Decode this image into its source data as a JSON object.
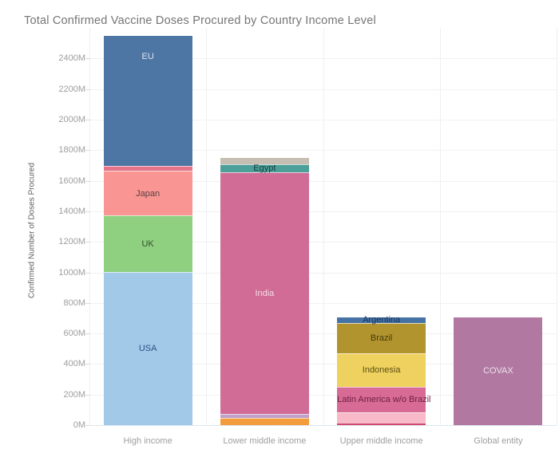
{
  "title": "Total Confirmed Vaccine Doses Procured by Country Income Level",
  "chart_data": {
    "type": "bar",
    "stacked": true,
    "title": "Total Confirmed Vaccine Doses Procured by Country Income Level",
    "xlabel": "",
    "ylabel": "Confirmed Number of Doses Procured",
    "ylim": [
      0,
      2600
    ],
    "ytick_values": [
      0,
      200,
      400,
      600,
      800,
      1000,
      1200,
      1400,
      1600,
      1800,
      2000,
      2200,
      2400
    ],
    "ytick_suffix": "M",
    "grid": "horizontal-faint, dotted zero line",
    "legend": "none (segments labeled inline)",
    "categories": [
      "High income",
      "Lower middle income",
      "Upper middle income",
      "Global entity"
    ],
    "value_unit": "million doses",
    "bars": [
      {
        "category": "High income",
        "total": 2548,
        "segments_bottom_up": [
          {
            "name": "USA",
            "value": 1005,
            "color": "#a3c9e9",
            "label": "USA",
            "label_color": "#28517c"
          },
          {
            "name": "UK",
            "value": 368,
            "color": "#8ed07f",
            "label": "UK",
            "label_color": "#33512f"
          },
          {
            "name": "Japan",
            "value": 292,
            "color": "#f99694",
            "label": "Japan",
            "label_color": "#5a3e3e"
          },
          {
            "name": "unlabeled-rose",
            "value": 30,
            "color": "#e5738a",
            "label": "",
            "label_color": ""
          },
          {
            "name": "EU",
            "value": 853,
            "color": "#4d76a4",
            "label": "EU",
            "label_color": "#dde5f0",
            "label_valign": "top"
          }
        ]
      },
      {
        "category": "Lower middle income",
        "total": 1750,
        "segments_bottom_up": [
          {
            "name": "unlabeled-orange",
            "value": 47,
            "color": "#f39c3d",
            "label": "",
            "label_color": ""
          },
          {
            "name": "unlabeled-lavender",
            "value": 26,
            "color": "#bfa0c9",
            "label": "",
            "label_color": ""
          },
          {
            "name": "India",
            "value": 1582,
            "color": "#d16c97",
            "label": "India",
            "label_color": "#f4dce6"
          },
          {
            "name": "Egypt",
            "value": 53,
            "color": "#4d9f9a",
            "label": "Egypt",
            "label_color": "#153f3c"
          },
          {
            "name": "unlabeled-gray",
            "value": 42,
            "color": "#c7beb3",
            "label": "",
            "label_color": ""
          }
        ]
      },
      {
        "category": "Upper middle income",
        "total": 705,
        "segments_bottom_up": [
          {
            "name": "unlabeled-darkrose",
            "value": 16,
            "color": "#d14a6e",
            "label": "",
            "label_color": ""
          },
          {
            "name": "unlabeled-lightpink",
            "value": 68,
            "color": "#f8bac8",
            "label": "",
            "label_color": ""
          },
          {
            "name": "Latin America w/o Brazil",
            "value": 167,
            "color": "#d76b95",
            "label": "Latin America w/o Brazil",
            "label_color": "#6e1f41"
          },
          {
            "name": "Indonesia",
            "value": 219,
            "color": "#eed15e",
            "label": "Indonesia",
            "label_color": "#5c4e14"
          },
          {
            "name": "Brazil",
            "value": 199,
            "color": "#b2942e",
            "label": "Brazil",
            "label_color": "#473b0d"
          },
          {
            "name": "Argentina",
            "value": 36,
            "color": "#4673a5",
            "label": "Argentina",
            "label_color": "#16365c"
          }
        ]
      },
      {
        "category": "Global entity",
        "total": 706,
        "segments_bottom_up": [
          {
            "name": "COVAX",
            "value": 706,
            "color": "#b179a2",
            "label": "COVAX",
            "label_color": "#ece2ea"
          }
        ]
      }
    ]
  }
}
